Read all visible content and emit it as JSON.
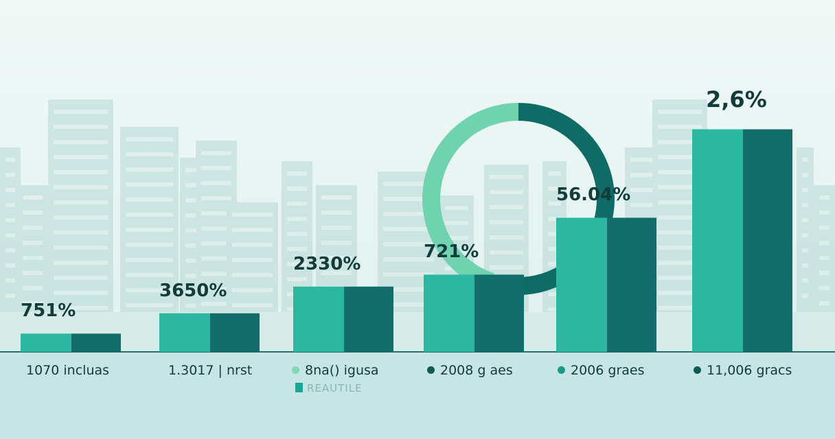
{
  "chart_data": {
    "type": "bar",
    "title": "",
    "xlabel": "",
    "ylabel": "",
    "ylim": [
      0,
      330
    ],
    "grid": false,
    "categories": [
      "1070 incluas",
      "1.3017 | nrst",
      "8na() igusa",
      "2008 g aes",
      "2006 graes",
      "11,006 gracs"
    ],
    "series": [
      {
        "values": [
          26,
          55,
          93,
          110,
          191,
          317
        ]
      },
      {
        "values": [
          26,
          55,
          93,
          110,
          191,
          317
        ]
      }
    ],
    "data_labels": [
      "751%",
      "3650%",
      "2330%",
      "721%",
      "56.04%",
      "2,6%"
    ],
    "donut": {
      "segments": [
        {
          "value": 50,
          "color": "#0f6b66"
        },
        {
          "value": 45,
          "color": "#6fd3b0"
        }
      ]
    },
    "legend": {
      "label": "REAUTILE",
      "placement": "bottom-center"
    },
    "category_dot_colors": [
      null,
      null,
      "#7fd9b5",
      "#0e5a55",
      "#1a9a86",
      "#0e5a55"
    ],
    "colors": {
      "light": "#2bb7a0",
      "dark": "#136e6b",
      "text": "#123c3a",
      "background": "#e9f5f3"
    }
  }
}
